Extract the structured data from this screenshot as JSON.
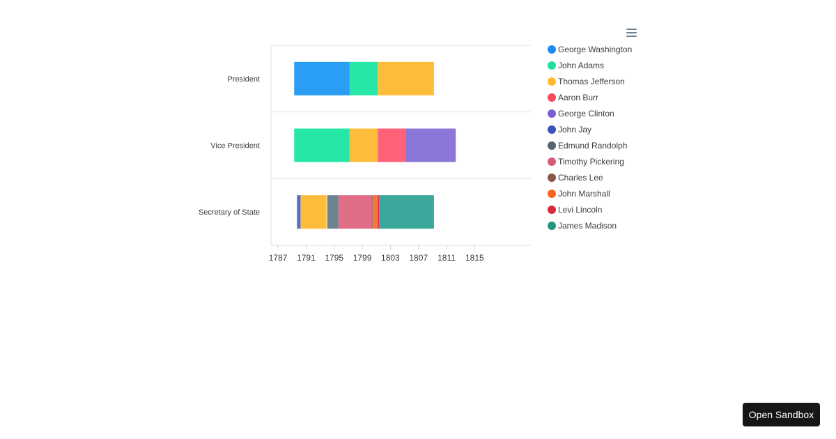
{
  "chart_data": {
    "type": "bar",
    "orientation": "horizontal",
    "subtype": "timeline-rangebar",
    "categories": [
      "President",
      "Vice President",
      "Secretary of State"
    ],
    "x_ticks": [
      "1787",
      "1791",
      "1795",
      "1799",
      "1803",
      "1807",
      "1811",
      "1815"
    ],
    "xlim": [
      1786,
      1823
    ],
    "grid": true,
    "legend_position": "right",
    "series": [
      {
        "name": "George Washington",
        "color": "#2a9df4",
        "ranges": [
          {
            "category": "President",
            "start": 1789.3,
            "end": 1797.2
          }
        ]
      },
      {
        "name": "John Adams",
        "color": "#26e7a6",
        "ranges": [
          {
            "category": "President",
            "start": 1797.2,
            "end": 1801.2
          },
          {
            "category": "Vice President",
            "start": 1789.3,
            "end": 1797.2
          }
        ]
      },
      {
        "name": "Thomas Jefferson",
        "color": "#febc3b",
        "ranges": [
          {
            "category": "President",
            "start": 1801.2,
            "end": 1809.2
          },
          {
            "category": "Vice President",
            "start": 1797.2,
            "end": 1801.2
          },
          {
            "category": "Secretary of State",
            "start": 1790.2,
            "end": 1793.9
          }
        ]
      },
      {
        "name": "Aaron Burr",
        "color": "#ff6178",
        "ranges": [
          {
            "category": "Vice President",
            "start": 1801.2,
            "end": 1805.2
          }
        ]
      },
      {
        "name": "George Clinton",
        "color": "#8b75d7",
        "ranges": [
          {
            "category": "Vice President",
            "start": 1805.2,
            "end": 1812.3
          }
        ]
      },
      {
        "name": "John Jay",
        "color": "#5a6acf",
        "ranges": [
          {
            "category": "Secretary of State",
            "start": 1789.7,
            "end": 1790.2
          }
        ]
      },
      {
        "name": "Edmund Randolph",
        "color": "#6d848e",
        "ranges": [
          {
            "category": "Secretary of State",
            "start": 1794.0,
            "end": 1795.6
          }
        ]
      },
      {
        "name": "Timothy Pickering",
        "color": "#e06c86",
        "ranges": [
          {
            "category": "Secretary of State",
            "start": 1795.6,
            "end": 1800.4
          }
        ]
      },
      {
        "name": "Charles Lee",
        "color": "#8f5e4f",
        "ranges": [
          {
            "category": "Secretary of State",
            "start": 1800.4,
            "end": 1800.5
          }
        ]
      },
      {
        "name": "John Marshall",
        "color": "#f9733b",
        "ranges": [
          {
            "category": "Secretary of State",
            "start": 1800.5,
            "end": 1801.2
          }
        ]
      },
      {
        "name": "Levi Lincoln",
        "color": "#d8344e",
        "ranges": [
          {
            "category": "Secretary of State",
            "start": 1801.2,
            "end": 1801.4
          }
        ]
      },
      {
        "name": "James Madison",
        "color": "#3aa79a",
        "ranges": [
          {
            "category": "Secretary of State",
            "start": 1801.4,
            "end": 1809.2
          }
        ]
      }
    ],
    "legend_marker_colors": [
      "#1c8cf0",
      "#1fe19e",
      "#febb2c",
      "#f5485e",
      "#7c5fd0",
      "#3d51b7",
      "#566572",
      "#d55c77",
      "#8a5849",
      "#f6651e",
      "#d62a3d",
      "#23947f"
    ]
  },
  "toolbar": {
    "menu_icon": "hamburger-menu-icon"
  },
  "sandbox_button": {
    "label": "Open Sandbox"
  }
}
